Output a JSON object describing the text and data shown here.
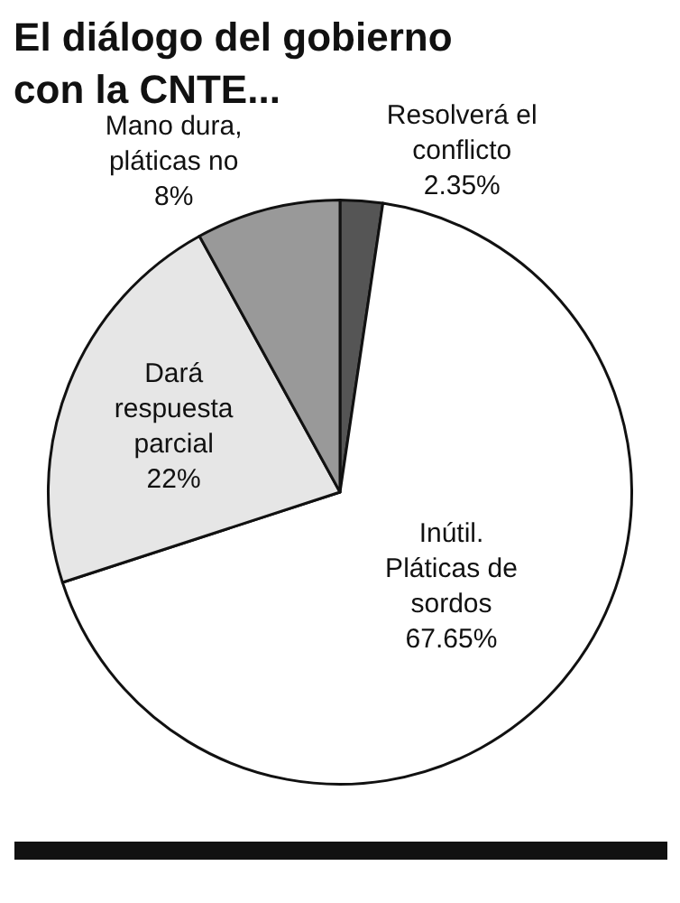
{
  "chart_data": {
    "type": "pie",
    "title": "El diálogo del gobierno con la CNTE...",
    "categories": [
      "Resolverá el conflicto",
      "Inútil. Pláticas de sordos",
      "Dará respuesta parcial",
      "Mano dura, pláticas no"
    ],
    "values": [
      2.35,
      67.65,
      22,
      8
    ],
    "value_labels": [
      "2.35%",
      "67.65%",
      "22%",
      "8%"
    ],
    "colors": [
      "#555555",
      "#ffffff",
      "#e6e6e6",
      "#999999"
    ],
    "legend": false
  }
}
